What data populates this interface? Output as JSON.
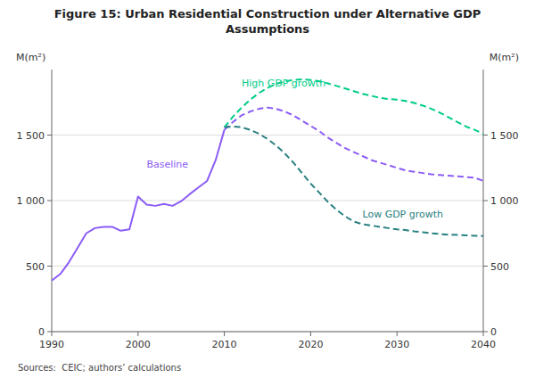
{
  "chart_data": {
    "type": "line",
    "title": "Figure 15: Urban Residential Construction under Alternative GDP\nAssumptions",
    "y_label": "M(m²)",
    "y2_label": "M(m²)",
    "source": "Sources:  CEIC; authors’ calculations",
    "xlim": [
      1990,
      2040
    ],
    "xticks": [
      1990,
      2000,
      2010,
      2020,
      2030,
      2040
    ],
    "ylim": [
      0,
      2000
    ],
    "yticks": [
      0,
      500,
      {
        "value": 1000,
        "label": "1 000"
      },
      {
        "value": 1500,
        "label": "1 500"
      }
    ],
    "y2lim": [
      0,
      2000
    ],
    "y2ticks": [
      0,
      500,
      {
        "value": 1000,
        "label": "1 000"
      },
      {
        "value": 1500,
        "label": "1 500"
      }
    ],
    "grid": true,
    "series": [
      {
        "color": "#8B5CF6",
        "line_style": "solid",
        "x": [
          1990,
          1991,
          1992,
          1993,
          1994,
          1995,
          1996,
          1997,
          1998,
          1999,
          2000,
          2001,
          2002,
          2003,
          2004,
          2005,
          2006,
          2007,
          2008,
          2009,
          2010
        ],
        "values": [
          390,
          440,
          530,
          640,
          750,
          790,
          800,
          800,
          770,
          780,
          1030,
          970,
          960,
          975,
          960,
          995,
          1050,
          1100,
          1150,
          1310,
          1540
        ]
      },
      {
        "color": "#8B5CF6",
        "line_style": "dashed",
        "x": [
          2010,
          2011,
          2012,
          2013,
          2014,
          2015,
          2016,
          2017,
          2018,
          2019,
          2020,
          2021,
          2022,
          2023,
          2024,
          2025,
          2026,
          2027,
          2028,
          2029,
          2030,
          2031,
          2032,
          2033,
          2034,
          2035,
          2036,
          2037,
          2038,
          2039,
          2040
        ],
        "values": [
          1540,
          1600,
          1650,
          1680,
          1700,
          1710,
          1700,
          1680,
          1650,
          1610,
          1570,
          1530,
          1480,
          1440,
          1400,
          1370,
          1340,
          1310,
          1290,
          1270,
          1250,
          1230,
          1220,
          1210,
          1200,
          1195,
          1190,
          1185,
          1180,
          1175,
          1150
        ]
      },
      {
        "color": "#00CC88",
        "line_style": "dashed",
        "x": [
          2010,
          2011,
          2012,
          2013,
          2014,
          2015,
          2016,
          2017,
          2018,
          2019,
          2020,
          2021,
          2022,
          2023,
          2024,
          2025,
          2026,
          2027,
          2028,
          2029,
          2030,
          2031,
          2032,
          2033,
          2034,
          2035,
          2036,
          2037,
          2038,
          2039,
          2040
        ],
        "values": [
          1560,
          1640,
          1710,
          1770,
          1820,
          1860,
          1890,
          1910,
          1920,
          1925,
          1920,
          1910,
          1895,
          1875,
          1855,
          1835,
          1815,
          1800,
          1785,
          1775,
          1770,
          1760,
          1745,
          1725,
          1700,
          1670,
          1635,
          1600,
          1565,
          1540,
          1510
        ]
      },
      {
        "color": "#2A8080",
        "line_style": "dashed",
        "x": [
          2010,
          2011,
          2012,
          2013,
          2014,
          2015,
          2016,
          2017,
          2018,
          2019,
          2020,
          2021,
          2022,
          2023,
          2024,
          2025,
          2026,
          2027,
          2028,
          2029,
          2030,
          2031,
          2032,
          2033,
          2034,
          2035,
          2036,
          2037,
          2038,
          2039,
          2040
        ],
        "values": [
          1560,
          1565,
          1560,
          1540,
          1510,
          1470,
          1420,
          1360,
          1290,
          1210,
          1130,
          1060,
          990,
          930,
          880,
          840,
          820,
          810,
          800,
          790,
          780,
          775,
          765,
          758,
          750,
          745,
          740,
          738,
          735,
          732,
          730
        ]
      }
    ],
    "annotations": [
      {
        "text": "Baseline",
        "x": 2001,
        "y": 1250,
        "color": "#8B5CF6"
      },
      {
        "text": "High GDP growth",
        "x": 2012,
        "y": 1870,
        "color": "#00CC88"
      },
      {
        "text": "Low GDP growth",
        "x": 2026,
        "y": 870,
        "color": "#2A8080"
      }
    ]
  }
}
